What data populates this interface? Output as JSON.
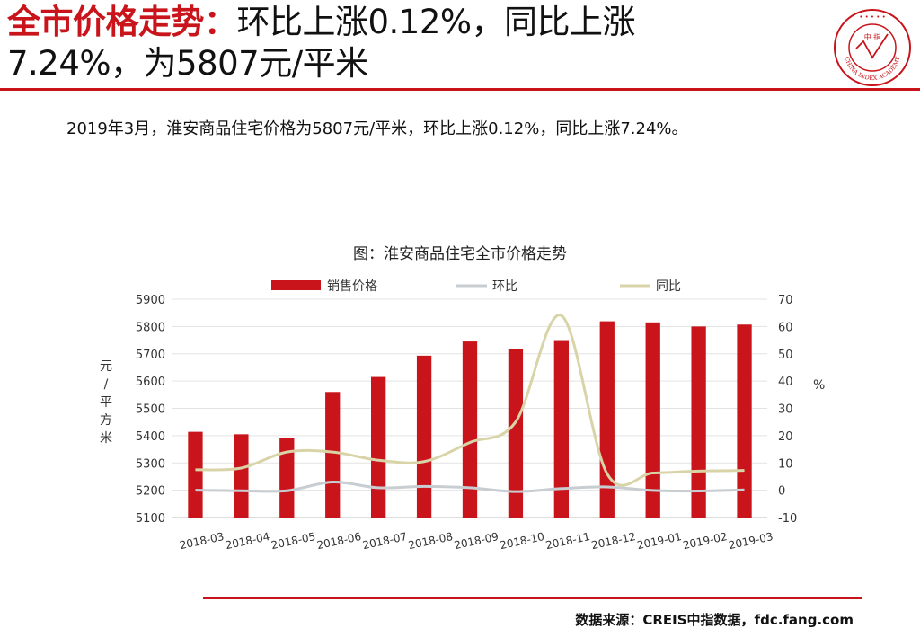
{
  "header": {
    "title_highlight": "全市价格走势：",
    "title_rest_line1": "环比上涨0.12%，同比上涨",
    "title_line2": "7.24%，为5807元/平米"
  },
  "logo": {
    "icon": "china-index-academy-seal",
    "text": "CHINA INDEX ACADEMY",
    "center_text": "中 指"
  },
  "summary": "2019年3月，淮安商品住宅价格为5807元/平米，环比上涨0.12%，同比上涨7.24%。",
  "chart_title": "图：淮安商品住宅全市价格走势",
  "colors": {
    "accent": "#c8141a",
    "bar": "#c8141a",
    "mom_line": "#c8cdd2",
    "yoy_line": "#d9d4a8"
  },
  "chart_data": {
    "type": "bar",
    "categories": [
      "2018-03",
      "2018-04",
      "2018-05",
      "2018-06",
      "2018-07",
      "2018-08",
      "2018-09",
      "2018-10",
      "2018-11",
      "2018-12",
      "2019-01",
      "2019-02",
      "2019-03"
    ],
    "series": [
      {
        "name": "销售价格",
        "type": "bar",
        "axis": "left",
        "values": [
          5414,
          5405,
          5393,
          5560,
          5615,
          5693,
          5745,
          5717,
          5750,
          5819,
          5815,
          5800,
          5807
        ]
      },
      {
        "name": "环比",
        "type": "line",
        "axis": "right",
        "values": [
          0,
          -0.2,
          -0.2,
          3,
          0.9,
          1.4,
          0.9,
          -0.5,
          0.6,
          1.2,
          -0.1,
          -0.3,
          0.12
        ]
      },
      {
        "name": "同比",
        "type": "line",
        "axis": "right",
        "values": [
          7.5,
          8.1,
          14,
          14,
          11,
          10.5,
          17.5,
          25,
          64,
          6,
          6.3,
          7,
          7.24
        ]
      }
    ],
    "ylabel": "元/平方米",
    "ylim": [
      5100,
      5900
    ],
    "yticks": [
      5100,
      5200,
      5300,
      5400,
      5500,
      5600,
      5700,
      5800,
      5900
    ],
    "y2label": "%",
    "y2lim": [
      -10,
      70
    ],
    "y2ticks": [
      -10,
      0,
      10,
      20,
      30,
      40,
      50,
      60,
      70
    ],
    "grid": true,
    "legend": "top"
  },
  "source": "数据来源：CREIS中指数据，fdc.fang.com"
}
